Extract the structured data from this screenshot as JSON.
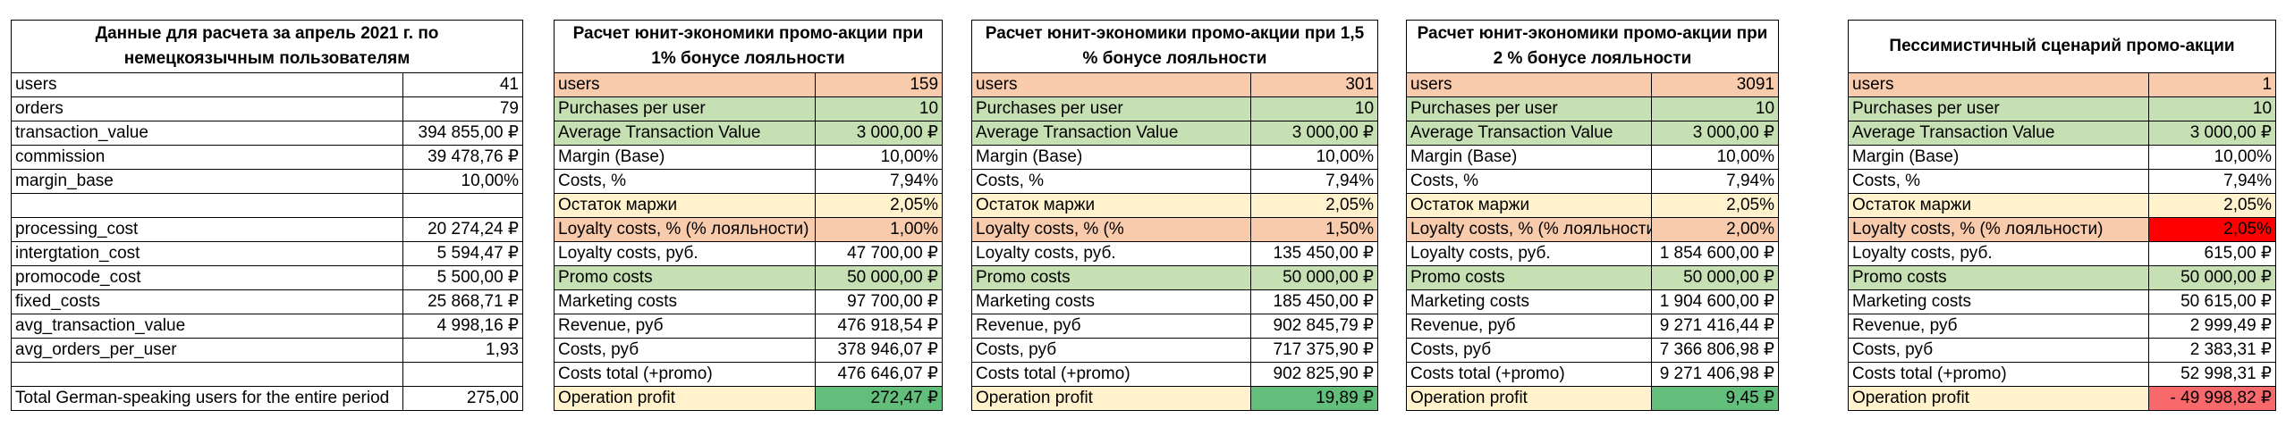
{
  "tables": [
    {
      "title": "Данные для расчета за апрель 2021 г. по немецкоязычным пользователям",
      "rows": [
        {
          "label": "users",
          "value": "41"
        },
        {
          "label": "orders",
          "value": "79"
        },
        {
          "label": "transaction_value",
          "value": "394 855,00 ₽"
        },
        {
          "label": "commission",
          "value": "39 478,76 ₽"
        },
        {
          "label": "margin_base",
          "value": "10,00%"
        },
        {
          "label": "",
          "value": ""
        },
        {
          "label": "processing_cost",
          "value": "20 274,24 ₽"
        },
        {
          "label": "intergtation_cost",
          "value": "5 594,47 ₽"
        },
        {
          "label": "promocode_cost",
          "value": "5 500,00 ₽"
        },
        {
          "label": "fixed_costs",
          "value": "25 868,71 ₽"
        },
        {
          "label": "avg_transaction_value",
          "value": "4 998,16 ₽"
        },
        {
          "label": "avg_orders_per_user",
          "value": "1,93"
        }
      ],
      "total_label": "Total German-speaking users for the entire period",
      "total_value": "275,00"
    },
    {
      "title": "Расчет юнит-экономики промо-акции при 1% бонусе лояльности",
      "rows": [
        {
          "label": "users",
          "value": "159",
          "style": "peach"
        },
        {
          "label": "Purchases per user",
          "value": "10",
          "style": "green"
        },
        {
          "label": "Average Transaction Value",
          "value": "3 000,00 ₽",
          "style": "green"
        },
        {
          "label": "Margin (Base)",
          "value": "10,00%"
        },
        {
          "label": "Costs, %",
          "value": "7,94%"
        },
        {
          "label": "Остаток маржи",
          "value": "2,05%",
          "style": "cream"
        },
        {
          "label": "Loyalty costs, % (% лояльности)",
          "value": "1,00%",
          "style": "peach"
        },
        {
          "label": "Loyalty costs, руб.",
          "value": "47 700,00 ₽"
        },
        {
          "label": "Promo costs",
          "value": "50 000,00 ₽",
          "style": "green"
        },
        {
          "label": "Marketing costs",
          "value": "97 700,00 ₽"
        },
        {
          "label": "Revenue, руб",
          "value": "476 918,54 ₽"
        },
        {
          "label": "Costs, руб",
          "value": "378 946,07 ₽"
        },
        {
          "label": "Costs total (+promo)",
          "value": "476 646,07 ₽"
        },
        {
          "label": "Operation profit",
          "value": "272,47 ₽",
          "style": "cream",
          "vstyle": "greenstrong"
        }
      ]
    },
    {
      "title": "Расчет юнит-экономики промо-акции при 1,5 % бонусе лояльности",
      "rows": [
        {
          "label": "users",
          "value": "301",
          "style": "peach"
        },
        {
          "label": "Purchases per user",
          "value": "10",
          "style": "green"
        },
        {
          "label": "Average Transaction Value",
          "value": "3 000,00 ₽",
          "style": "green"
        },
        {
          "label": "Margin (Base)",
          "value": "10,00%"
        },
        {
          "label": "Costs, %",
          "value": "7,94%"
        },
        {
          "label": "Остаток маржи",
          "value": "2,05%",
          "style": "cream"
        },
        {
          "label": "Loyalty costs, % (%",
          "value": "1,50%",
          "style": "peach"
        },
        {
          "label": "Loyalty costs, руб.",
          "value": "135 450,00 ₽"
        },
        {
          "label": "Promo costs",
          "value": "50 000,00 ₽",
          "style": "green"
        },
        {
          "label": "Marketing costs",
          "value": "185 450,00 ₽"
        },
        {
          "label": "Revenue, руб",
          "value": "902 845,79 ₽"
        },
        {
          "label": "Costs, руб",
          "value": "717 375,90 ₽"
        },
        {
          "label": "Costs total (+promo)",
          "value": "902 825,90 ₽"
        },
        {
          "label": "Operation profit",
          "value": "19,89 ₽",
          "style": "cream",
          "vstyle": "greenstrong"
        }
      ]
    },
    {
      "title": "Расчет юнит-экономики промо-акции при 2 % бонусе лояльности",
      "rows": [
        {
          "label": "users",
          "value": "3091",
          "style": "peach"
        },
        {
          "label": "Purchases per user",
          "value": "10",
          "style": "green"
        },
        {
          "label": "Average Transaction Value",
          "value": "3 000,00 ₽",
          "style": "green"
        },
        {
          "label": "Margin (Base)",
          "value": "10,00%"
        },
        {
          "label": "Costs, %",
          "value": "7,94%"
        },
        {
          "label": "Остаток маржи",
          "value": "2,05%",
          "style": "cream"
        },
        {
          "label": "Loyalty costs, % (% лояльности)",
          "value": "2,00%",
          "style": "peach"
        },
        {
          "label": "Loyalty costs, руб.",
          "value": "1 854 600,00 ₽"
        },
        {
          "label": "Promo costs",
          "value": "50 000,00 ₽",
          "style": "green"
        },
        {
          "label": "Marketing costs",
          "value": "1 904 600,00 ₽"
        },
        {
          "label": "Revenue, руб",
          "value": "9 271 416,44 ₽"
        },
        {
          "label": "Costs, руб",
          "value": "7 366 806,98 ₽"
        },
        {
          "label": "Costs total (+promo)",
          "value": "9 271 406,98 ₽"
        },
        {
          "label": "Operation profit",
          "value": "9,45 ₽",
          "style": "cream",
          "vstyle": "greenstrong"
        }
      ]
    },
    {
      "title": "Пессимистичный сценарий промо-акции",
      "rows": [
        {
          "label": "users",
          "value": "1",
          "style": "peach"
        },
        {
          "label": "Purchases per user",
          "value": "10",
          "style": "green"
        },
        {
          "label": "Average Transaction Value",
          "value": "3 000,00 ₽",
          "style": "green"
        },
        {
          "label": "Margin (Base)",
          "value": "10,00%"
        },
        {
          "label": "Costs, %",
          "value": "7,94%"
        },
        {
          "label": "Остаток маржи",
          "value": "2,05%",
          "style": "cream"
        },
        {
          "label": "Loyalty costs, % (% лояльности)",
          "value": "2,05%",
          "style": "peach",
          "vstyle": "red"
        },
        {
          "label": "Loyalty costs, руб.",
          "value": "615,00 ₽"
        },
        {
          "label": "Promo costs",
          "value": "50 000,00 ₽",
          "style": "green"
        },
        {
          "label": "Marketing costs",
          "value": "50 615,00 ₽"
        },
        {
          "label": "Revenue, руб",
          "value": "2 999,49 ₽"
        },
        {
          "label": "Costs, руб",
          "value": "2 383,31 ₽"
        },
        {
          "label": "Costs total (+promo)",
          "value": "52 998,31 ₽"
        },
        {
          "label": "Operation profit",
          "value": "- 49 998,82 ₽",
          "style": "cream",
          "vstyle": "lightred"
        }
      ]
    }
  ]
}
